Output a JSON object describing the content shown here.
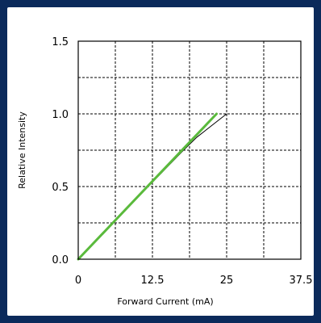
{
  "colors": {
    "frame": "#0b2a5b",
    "grid": "#000000",
    "green_series": "#5aba3c",
    "black_series": "#000000"
  },
  "chart_data": {
    "type": "line",
    "title": "",
    "xlabel": "Forward Current (mA)",
    "ylabel": "Relative Intensity",
    "xlim": [
      0,
      37.5
    ],
    "ylim": [
      0,
      1.5
    ],
    "xticks": [
      0,
      12.5,
      25,
      37.5
    ],
    "xtick_labels": [
      "0",
      "12.5",
      "25",
      "37.5"
    ],
    "yticks": [
      0,
      0.5,
      1.0,
      1.5
    ],
    "ytick_labels": [
      "0.0",
      "0.5",
      "1.0",
      "1.5"
    ],
    "grid": true,
    "grid_style": "dashed",
    "series": [
      {
        "color": "#000000",
        "x": [
          0,
          12.5,
          17.5,
          20,
          25
        ],
        "y": [
          0,
          0.53,
          0.74,
          0.84,
          1.0
        ]
      },
      {
        "color": "#5aba3c",
        "x": [
          0,
          23.3
        ],
        "y": [
          0,
          1.0
        ]
      }
    ]
  }
}
